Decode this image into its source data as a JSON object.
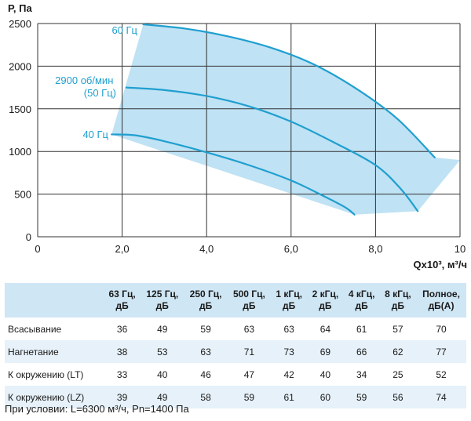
{
  "chart_data": {
    "type": "line",
    "xlabel": "Qx10³, м³/ч",
    "ylabel": "Р, Па",
    "xlim": [
      0,
      10
    ],
    "ylim": [
      0,
      2500
    ],
    "x_ticks": [
      "0",
      "2,0",
      "4,0",
      "6,0",
      "8,0",
      "10"
    ],
    "y_ticks": [
      "0",
      "500",
      "1000",
      "1500",
      "2000",
      "2500"
    ],
    "grid": true,
    "colors": {
      "line": "#1f9fcf",
      "fill": "#bfe2f4",
      "grid": "#333333"
    },
    "series": [
      {
        "name": "60 Гц",
        "x": [
          2.5,
          3.5,
          4.5,
          5.5,
          6.5,
          7.5,
          8.5,
          9.4
        ],
        "y": [
          2490,
          2440,
          2350,
          2220,
          2030,
          1750,
          1390,
          930
        ]
      },
      {
        "name": "2900 об/мин (50 Гц)",
        "x": [
          2.1,
          3.0,
          4.0,
          5.0,
          6.0,
          7.0,
          8.0,
          8.6,
          9.0
        ],
        "y": [
          1750,
          1720,
          1650,
          1530,
          1350,
          1110,
          840,
          560,
          300
        ]
      },
      {
        "name": "40 Гц",
        "x": [
          1.75,
          2.3,
          3.0,
          4.0,
          5.0,
          6.0,
          6.8,
          7.3,
          7.5
        ],
        "y": [
          1200,
          1190,
          1120,
          990,
          840,
          660,
          470,
          340,
          260
        ]
      }
    ],
    "envelope": {
      "x": [
        1.75,
        2.5,
        3.5,
        4.5,
        5.5,
        6.5,
        7.5,
        8.5,
        9.4,
        10.0,
        9.0,
        7.5
      ],
      "y": [
        1200,
        2490,
        2440,
        2350,
        2220,
        2030,
        1750,
        1390,
        930,
        900,
        300,
        260
      ]
    }
  },
  "noise_table": {
    "headers": [
      "63 Гц,\nдБ",
      "125 Гц,\nдБ",
      "250 Гц,\nдБ",
      "500 Гц,\nдБ",
      "1 кГц,\nдБ",
      "2 кГц,\nдБ",
      "4 кГц,\nдБ",
      "8 кГц,\nдБ",
      "Полное,\nдБ(А)"
    ],
    "rows": [
      {
        "label": "Всасывание",
        "values": [
          "36",
          "49",
          "59",
          "63",
          "63",
          "64",
          "61",
          "57",
          "70"
        ]
      },
      {
        "label": "Нагнетание",
        "values": [
          "38",
          "53",
          "63",
          "71",
          "73",
          "69",
          "66",
          "62",
          "77"
        ]
      },
      {
        "label": "К окружению (LT)",
        "values": [
          "33",
          "40",
          "46",
          "47",
          "42",
          "40",
          "34",
          "25",
          "52"
        ]
      },
      {
        "label": "К окружению (LZ)",
        "values": [
          "39",
          "49",
          "58",
          "59",
          "61",
          "60",
          "59",
          "56",
          "74"
        ]
      }
    ]
  },
  "footnote": "При условии: L=6300 м³/ч, Рn=1400 Па"
}
